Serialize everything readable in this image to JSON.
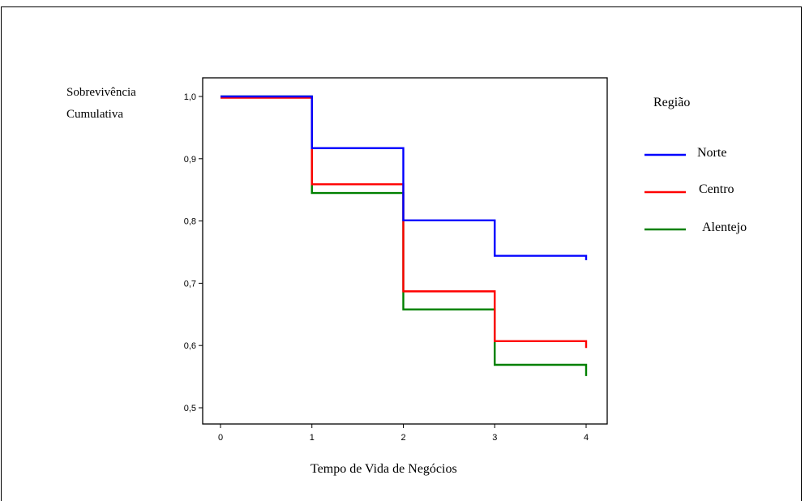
{
  "chart_data": {
    "type": "line",
    "step": true,
    "title": "",
    "ylabel_lines": [
      "Sobrevivência",
      "Cumulativa"
    ],
    "xlabel": "Tempo de Vida de Negócios",
    "xlim": [
      0,
      4
    ],
    "ylim": [
      0.5,
      1.0
    ],
    "x_ticks": [
      0,
      1,
      2,
      3,
      4
    ],
    "x_tick_labels": [
      "0",
      "1",
      "2",
      "3",
      "4"
    ],
    "y_ticks": [
      0.5,
      0.6,
      0.7,
      0.8,
      0.9,
      1.0
    ],
    "y_tick_labels": [
      "0,5",
      "0,6",
      "0,7",
      "0,8",
      "0,9",
      "1,0"
    ],
    "grid": false,
    "legend_title": "Região",
    "legend_position": "right",
    "x": [
      0,
      1,
      2,
      3,
      4
    ],
    "series": [
      {
        "name": "Norte",
        "color": "#0000ff",
        "values": [
          1.0,
          0.917,
          0.801,
          0.744,
          0.737
        ]
      },
      {
        "name": "Centro",
        "color": "#ff0000",
        "values": [
          0.998,
          0.859,
          0.687,
          0.607,
          0.596
        ]
      },
      {
        "name": "Alentejo",
        "color": "#008000",
        "values": [
          1.0,
          0.845,
          0.658,
          0.569,
          0.551
        ]
      }
    ]
  }
}
